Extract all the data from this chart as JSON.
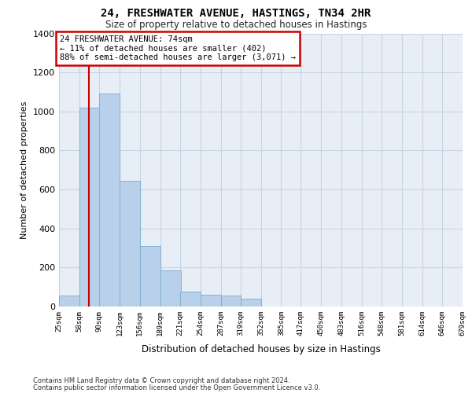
{
  "title_line1": "24, FRESHWATER AVENUE, HASTINGS, TN34 2HR",
  "title_line2": "Size of property relative to detached houses in Hastings",
  "xlabel": "Distribution of detached houses by size in Hastings",
  "ylabel": "Number of detached properties",
  "footnote1": "Contains HM Land Registry data © Crown copyright and database right 2024.",
  "footnote2": "Contains public sector information licensed under the Open Government Licence v3.0.",
  "annotation_line1": "24 FRESHWATER AVENUE: 74sqm",
  "annotation_line2": "← 11% of detached houses are smaller (402)",
  "annotation_line3": "88% of semi-detached houses are larger (3,071) →",
  "property_size": 74,
  "bins": [
    25,
    58,
    90,
    123,
    156,
    189,
    221,
    254,
    287,
    319,
    352,
    385,
    417,
    450,
    483,
    516,
    548,
    581,
    614,
    646,
    679
  ],
  "values": [
    55,
    1020,
    1090,
    645,
    310,
    185,
    75,
    60,
    55,
    40,
    0,
    0,
    0,
    0,
    0,
    0,
    0,
    0,
    0,
    0
  ],
  "bar_color": "#b8d0ea",
  "bar_edge_color": "#7aaad0",
  "grid_color": "#c8d4e4",
  "background_color": "#e8eef6",
  "annotation_box_facecolor": "#ffffff",
  "annotation_border_color": "#cc0000",
  "vline_color": "#cc0000",
  "ylim": [
    0,
    1400
  ],
  "yticks": [
    0,
    200,
    400,
    600,
    800,
    1000,
    1200,
    1400
  ]
}
